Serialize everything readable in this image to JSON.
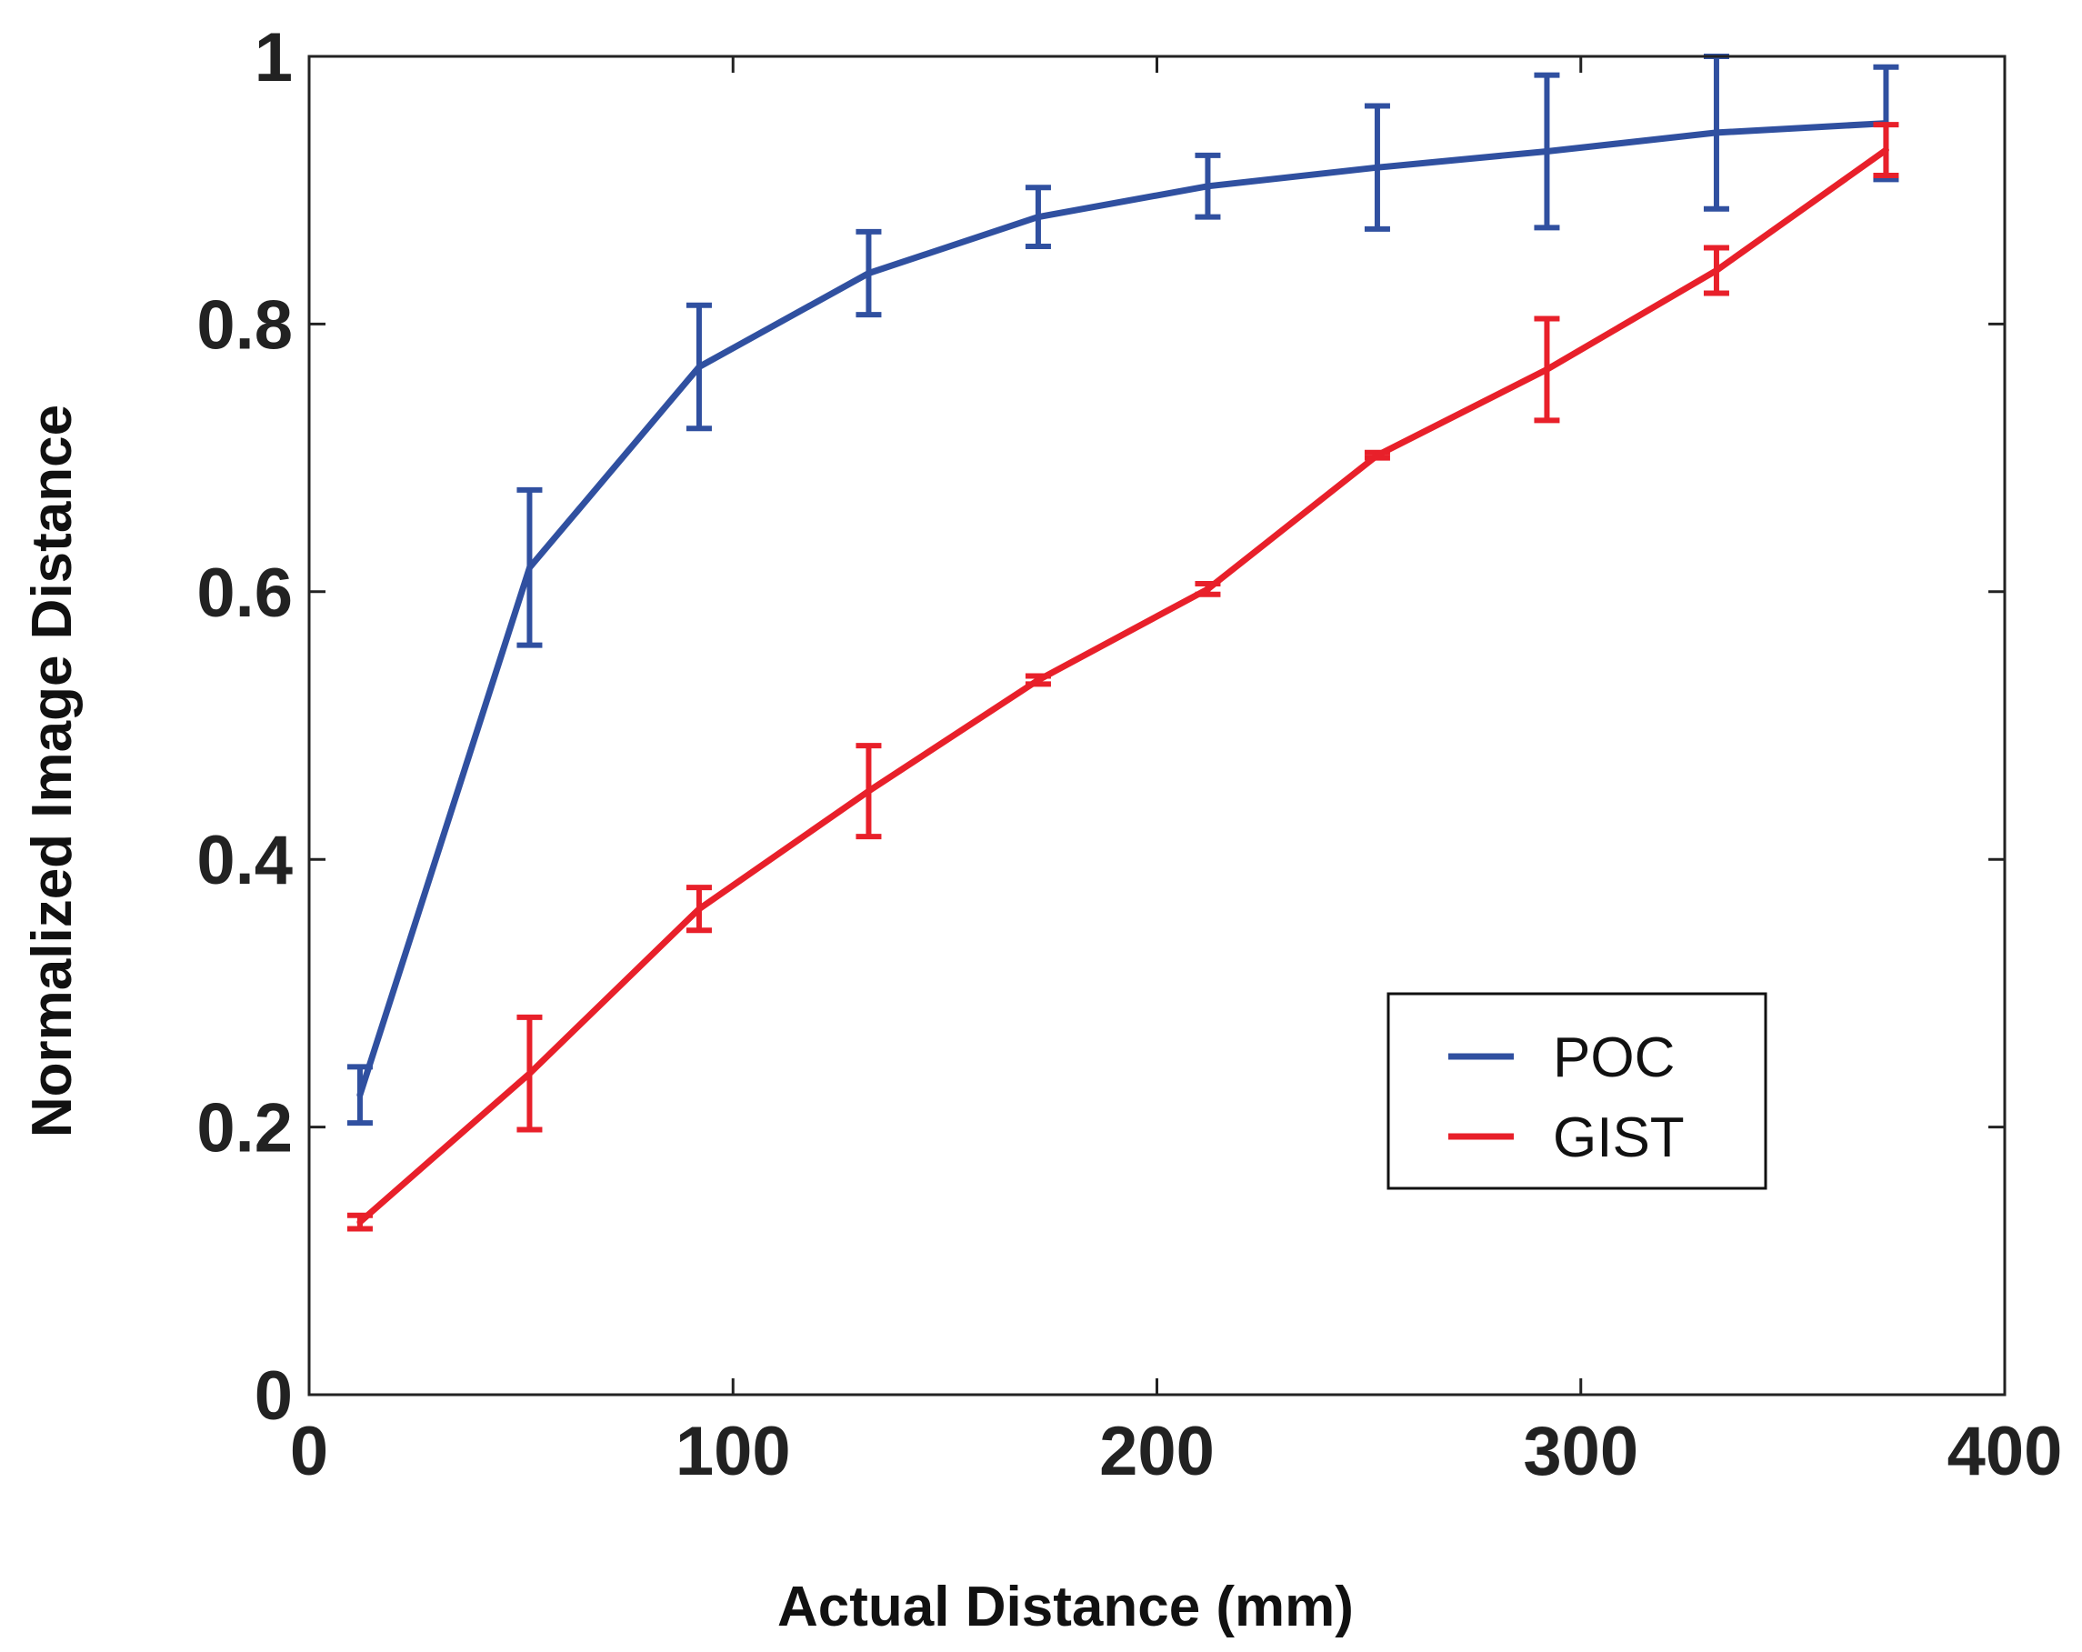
{
  "chart_data": {
    "type": "line",
    "title": "",
    "xlabel": "Actual Distance (mm)",
    "ylabel": "Normalized Image Distance",
    "xlim": [
      0,
      400
    ],
    "ylim": [
      0,
      1
    ],
    "xticks": [
      0,
      100,
      200,
      300,
      400
    ],
    "xtick_labels": [
      "0",
      "100",
      "200",
      "300",
      "400"
    ],
    "yticks": [
      0,
      0.2,
      0.4,
      0.6,
      0.8,
      1
    ],
    "ytick_labels": [
      "0",
      "0.2",
      "0.4",
      "0.6",
      "0.8",
      "1"
    ],
    "grid": false,
    "legend_position": "bottom-right",
    "x": [
      12,
      52,
      92,
      132,
      172,
      212,
      252,
      292,
      332,
      372
    ],
    "series": [
      {
        "name": "POC",
        "color": "#3050a0",
        "values": [
          0.224,
          0.618,
          0.768,
          0.838,
          0.88,
          0.903,
          0.917,
          0.929,
          0.943,
          0.95
        ],
        "errors": [
          0.021,
          0.058,
          0.046,
          0.031,
          0.022,
          0.023,
          0.046,
          0.057,
          0.057,
          0.042
        ]
      },
      {
        "name": "GIST",
        "color": "#e8202a",
        "values": [
          0.129,
          0.24,
          0.363,
          0.451,
          0.534,
          0.602,
          0.702,
          0.766,
          0.84,
          0.93
        ],
        "errors": [
          0.005,
          0.042,
          0.016,
          0.034,
          0.003,
          0.004,
          0.002,
          0.038,
          0.017,
          0.019
        ]
      }
    ]
  }
}
